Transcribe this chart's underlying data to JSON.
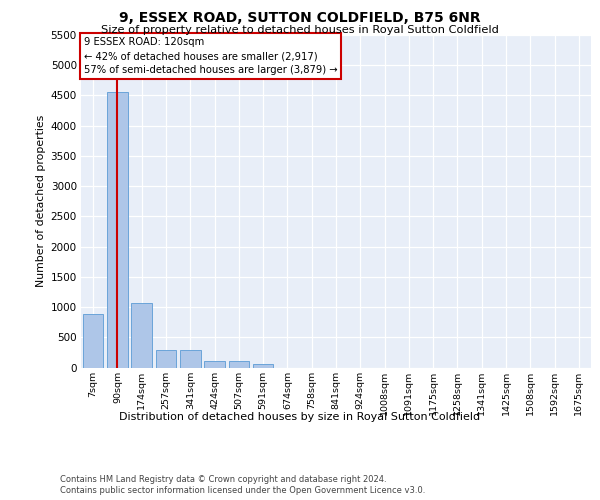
{
  "title": "9, ESSEX ROAD, SUTTON COLDFIELD, B75 6NR",
  "subtitle": "Size of property relative to detached houses in Royal Sutton Coldfield",
  "xlabel": "Distribution of detached houses by size in Royal Sutton Coldfield",
  "ylabel": "Number of detached properties",
  "categories": [
    "7sqm",
    "90sqm",
    "174sqm",
    "257sqm",
    "341sqm",
    "424sqm",
    "507sqm",
    "591sqm",
    "674sqm",
    "758sqm",
    "841sqm",
    "924sqm",
    "1008sqm",
    "1091sqm",
    "1175sqm",
    "1258sqm",
    "1341sqm",
    "1425sqm",
    "1508sqm",
    "1592sqm",
    "1675sqm"
  ],
  "values": [
    880,
    4560,
    1060,
    290,
    290,
    100,
    100,
    55,
    0,
    0,
    0,
    0,
    0,
    0,
    0,
    0,
    0,
    0,
    0,
    0,
    0
  ],
  "bar_color": "#aec6e8",
  "bar_edge_color": "#5b9bd5",
  "vline_x": 1,
  "vline_color": "#cc0000",
  "annotation_text": "9 ESSEX ROAD: 120sqm\n← 42% of detached houses are smaller (2,917)\n57% of semi-detached houses are larger (3,879) →",
  "annotation_box_color": "#ffffff",
  "annotation_box_edge_color": "#cc0000",
  "ylim": [
    0,
    5500
  ],
  "yticks": [
    0,
    500,
    1000,
    1500,
    2000,
    2500,
    3000,
    3500,
    4000,
    4500,
    5000,
    5500
  ],
  "background_color": "#e8eef8",
  "grid_color": "#ffffff",
  "footer_line1": "Contains HM Land Registry data © Crown copyright and database right 2024.",
  "footer_line2": "Contains public sector information licensed under the Open Government Licence v3.0."
}
